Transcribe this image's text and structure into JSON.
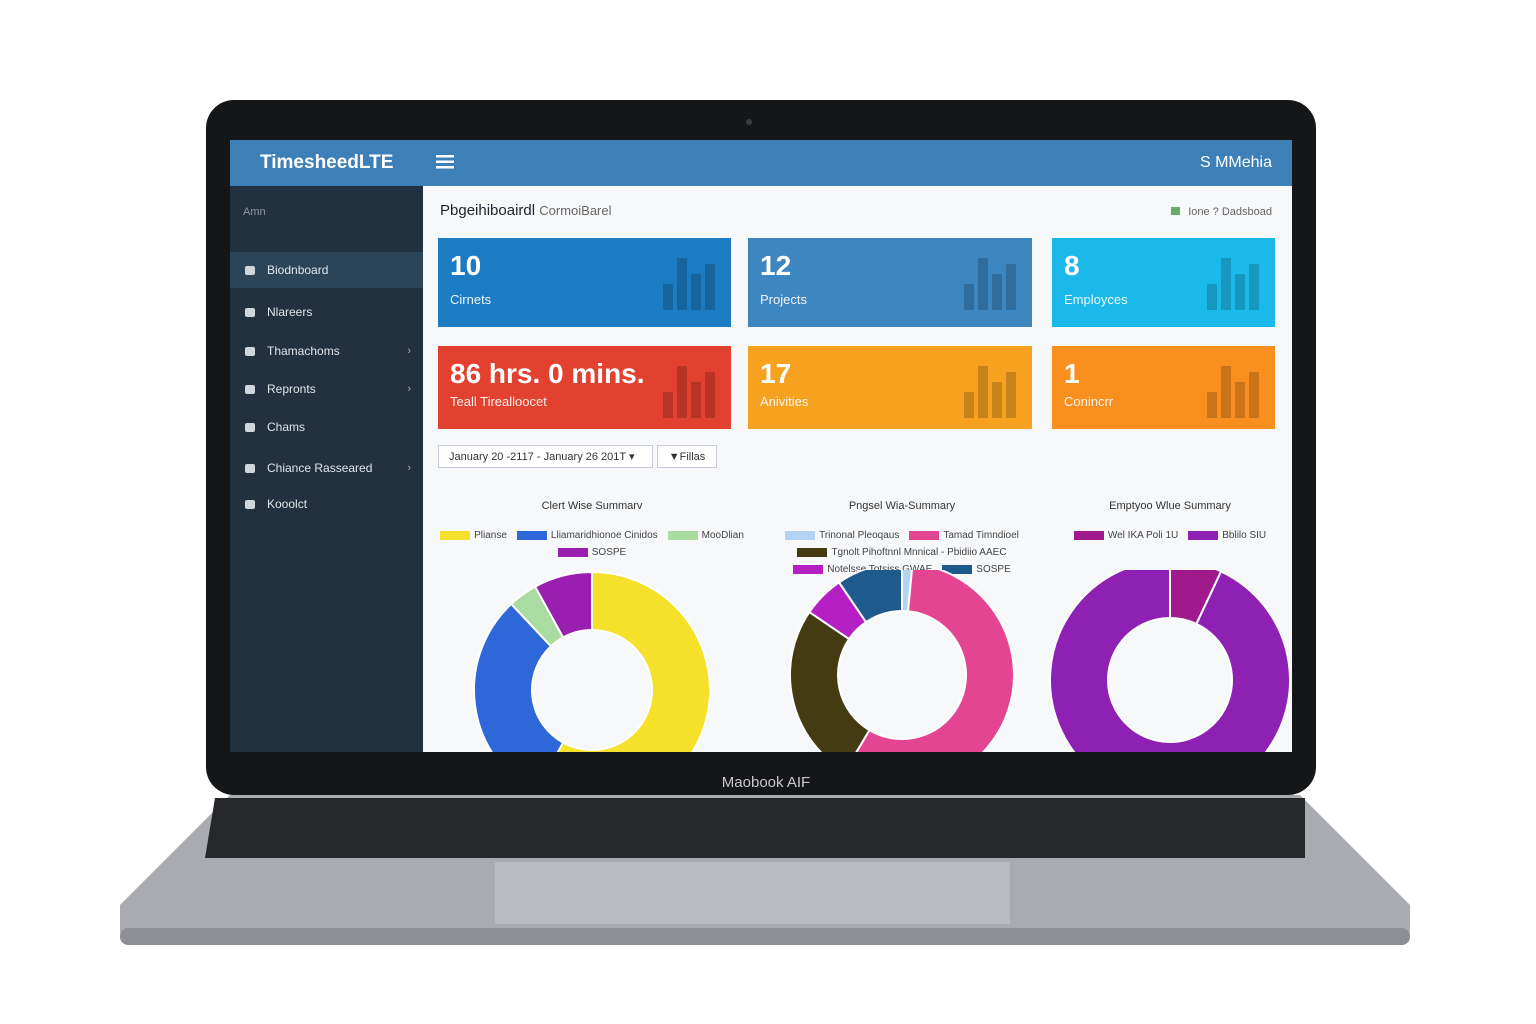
{
  "laptop_label": "Maobook AIF",
  "header": {
    "brand": "TimesheedLTE",
    "user": "S MMehia"
  },
  "sidebar": {
    "heading": "Amn",
    "items": [
      {
        "label": "Biodnboard",
        "active": true
      },
      {
        "label": "Nlareers"
      },
      {
        "label": "Thamachoms",
        "submenu": true
      },
      {
        "label": "Repronts",
        "submenu": true
      },
      {
        "label": "Chams"
      },
      {
        "label": "Chiance Rasseared",
        "submenu": true
      },
      {
        "label": "Kooolct"
      }
    ]
  },
  "page": {
    "title": "Pbgeihiboairdl",
    "subtitle": "CormoiBarel",
    "breadcrumb": "Ione ? Dadsboad"
  },
  "stats": [
    {
      "value": 10,
      "label": "Cirnets",
      "color": "#1b7cc3"
    },
    {
      "value": 12,
      "label": "Projects",
      "color": "#3d86c0"
    },
    {
      "value": 8,
      "label": "Employces",
      "color": "#1bb9ea"
    },
    {
      "value": "86 hrs. 0 mins.",
      "label": "Teall Tirealloocet",
      "color": "#e2412f"
    },
    {
      "value": 17,
      "label": "Anivities",
      "color": "#f6a11f"
    },
    {
      "value": 1,
      "label": "Conincrr",
      "color": "#f88f1f"
    }
  ],
  "filter": {
    "date_range": "January 20 -2117 - January 26 201T",
    "button": "Fillas"
  },
  "chart_data": [
    {
      "type": "donut",
      "title": "Clert Wise Summarv",
      "categories": [
        "Plianse",
        "Lliamaridhionoe Cinidos",
        "MooDlian",
        "SOSPE"
      ],
      "values": [
        58,
        30,
        4,
        8
      ],
      "colors": [
        "#f5e02a",
        "#2e67d8",
        "#a8dca0",
        "#9a1fb0"
      ]
    },
    {
      "type": "donut",
      "title": "Pngsel Wia-Summary",
      "categories": [
        "Trinonal Pleoqaus",
        "Tamad  Timndioel",
        "Tgnolt Pihoftnnl Mnnical - Pbidiio AAEC",
        "Notelsse Totsiss GWAE",
        "SOSPE"
      ],
      "values": [
        1.5,
        57,
        26,
        6,
        9.5
      ],
      "colors": [
        "#b4d2f2",
        "#e44593",
        "#453b12",
        "#b61fc4",
        "#1f5a8c"
      ]
    },
    {
      "type": "donut",
      "title": "Emptyoo Wlue Summary",
      "categories": [
        "Wel IKA Poli 1U",
        "Bblilo SIU"
      ],
      "values": [
        7,
        93
      ],
      "colors": [
        "#a01a8e",
        "#8e20b4"
      ]
    }
  ]
}
